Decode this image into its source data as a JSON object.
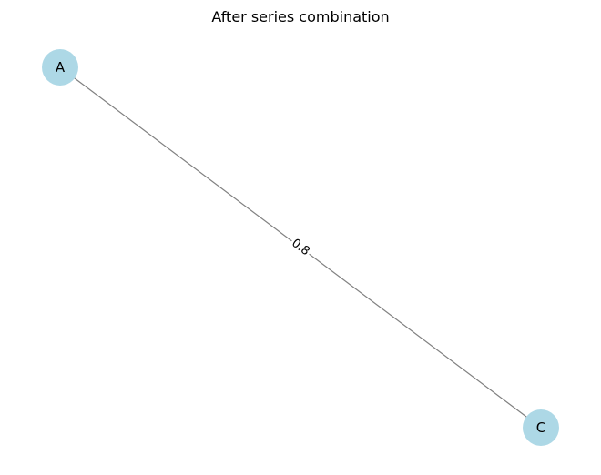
{
  "title": "After series combination",
  "colors": {
    "node_fill": "#add8e6",
    "edge": "#808080",
    "text": "#000000",
    "background": "#ffffff"
  },
  "nodes": [
    {
      "id": "A",
      "label": "A"
    },
    {
      "id": "C",
      "label": "C"
    }
  ],
  "edges": [
    {
      "source": "A",
      "target": "C",
      "label": "0.8"
    }
  ]
}
